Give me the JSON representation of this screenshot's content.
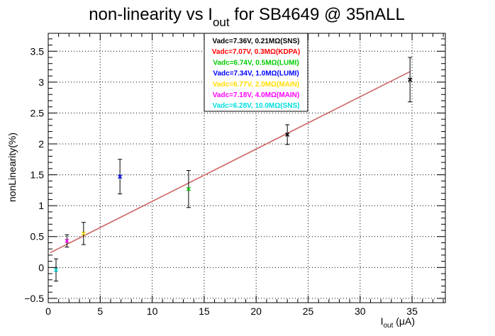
{
  "chart_data": {
    "type": "scatter",
    "title": {
      "main": "non-linearity vs I",
      "sub": "out",
      "rest": " for SB4649 @ 35nALL"
    },
    "xlabel": {
      "main": "I",
      "sub": "out",
      "rest": " (μA)"
    },
    "ylabel": "nonLinearity(%)",
    "xlim": [
      0,
      38.2
    ],
    "ylim": [
      -0.57,
      3.79
    ],
    "x_ticks": [
      0,
      5,
      10,
      15,
      20,
      25,
      30,
      35
    ],
    "x_tick_labels": [
      "0",
      "5",
      "10",
      "15",
      "20",
      "25",
      "30",
      "35"
    ],
    "y_ticks": [
      -0.5,
      0,
      0.5,
      1,
      1.5,
      2,
      2.5,
      3,
      3.5
    ],
    "y_tick_labels": [
      "−0.5",
      "0",
      "0.5",
      "1",
      "1.5",
      "2",
      "2.5",
      "3",
      "3.5"
    ],
    "grid": true,
    "legend_placement": "top-center",
    "fit_line": {
      "x": [
        0.2,
        34.8
      ],
      "y": [
        0.24,
        3.17
      ],
      "color": "#cc6666"
    },
    "series": [
      {
        "name": "Vadc=7.36V, 0.21MΩ(SNS)",
        "color": "#000000",
        "x": [
          23.0,
          34.8
        ],
        "y": [
          2.15,
          3.04
        ],
        "err": [
          0.16,
          0.36
        ]
      },
      {
        "name": "Vadc=7.07V, 0.3MΩ(KDPA)",
        "color": "#ff0000",
        "x": [],
        "y": [],
        "err": []
      },
      {
        "name": "Vadc=6.74V, 0.5MΩ(LUMI)",
        "color": "#00cc00",
        "x": [
          13.5
        ],
        "y": [
          1.27
        ],
        "err": [
          0.3
        ]
      },
      {
        "name": "Vadc=7.34V, 1.0MΩ(LUMI)",
        "color": "#0000ff",
        "x": [
          6.9
        ],
        "y": [
          1.47
        ],
        "err": [
          0.28
        ]
      },
      {
        "name": "Vadc=6.77V, 2.0MΩ(MAIN)",
        "color": "#ffdd00",
        "x": [
          3.4
        ],
        "y": [
          0.55
        ],
        "err": [
          0.18
        ]
      },
      {
        "name": "Vadc=7.18V, 4.0MΩ(MAIN)",
        "color": "#ff00ff",
        "x": [
          1.8
        ],
        "y": [
          0.43
        ],
        "err": [
          0.1
        ]
      },
      {
        "name": "Vadc=6.28V, 10.0MΩ(SNS)",
        "color": "#00dddd",
        "x": [
          0.75
        ],
        "y": [
          -0.04
        ],
        "err": [
          0.18
        ]
      }
    ]
  }
}
